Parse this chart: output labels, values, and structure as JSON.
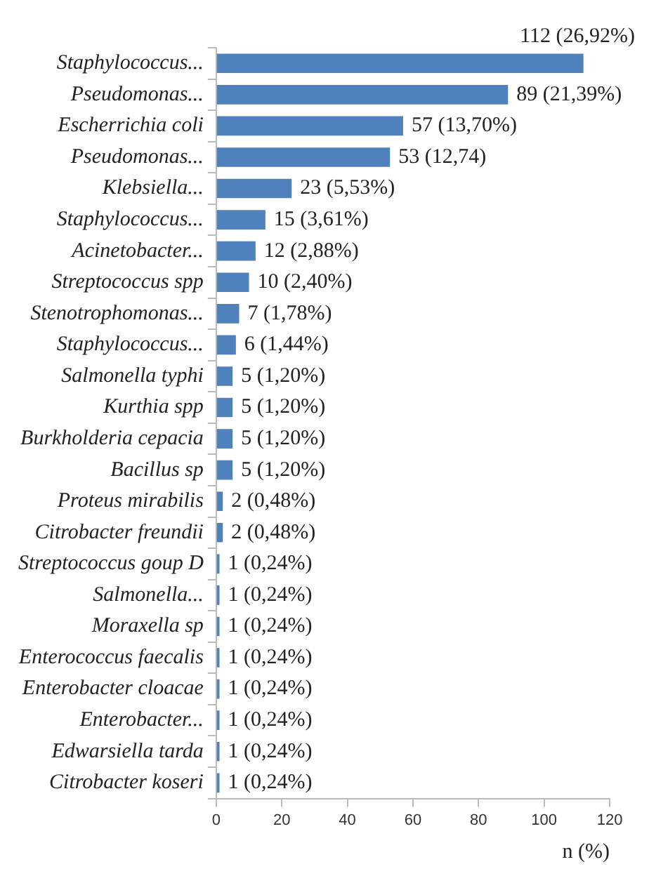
{
  "chart_data": {
    "type": "bar",
    "orientation": "horizontal",
    "xlabel": "n (%)",
    "categories": [
      "Staphylococcus...",
      "Pseudomonas...",
      "Escherrichia coli",
      "Pseudomonas...",
      "Klebsiella...",
      "Staphylococcus...",
      "Acinetobacter...",
      "Streptococcus spp",
      "Stenotrophomonas...",
      "Staphylococcus...",
      "Salmonella typhi",
      "Kurthia spp",
      "Burkholderia cepacia",
      "Bacillus sp",
      "Proteus mirabilis",
      "Citrobacter freundii",
      "Streptococcus goup D",
      "Salmonella...",
      "Moraxella sp",
      "Enterococcus faecalis",
      "Enterobacter cloacae",
      "Enterobacter...",
      "Edwarsiella tarda",
      "Citrobacter koseri"
    ],
    "values": [
      112,
      89,
      57,
      53,
      23,
      15,
      12,
      10,
      7,
      6,
      5,
      5,
      5,
      5,
      2,
      2,
      1,
      1,
      1,
      1,
      1,
      1,
      1,
      1
    ],
    "value_labels": [
      "112 (26,92%)",
      "89 (21,39%)",
      "57 (13,70%)",
      "53 (12,74)",
      "23 (5,53%)",
      "15 (3,61%)",
      "12 (2,88%)",
      "10 (2,40%)",
      "7 (1,78%)",
      "6 (1,44%)",
      "5 (1,20%)",
      "5 (1,20%)",
      "5 (1,20%)",
      "5 (1,20%)",
      "2 (0,48%)",
      "2 (0,48%)",
      "1 (0,24%)",
      "1 (0,24%)",
      "1 (0,24%)",
      "1 (0,24%)",
      "1 (0,24%)",
      "1 (0,24%)",
      "1 (0,24%)",
      "1 (0,24%)"
    ],
    "color": "#4f81bd",
    "xlim": [
      0,
      120
    ],
    "xticks": [
      0,
      20,
      40,
      60,
      80,
      100,
      120
    ],
    "grid": false,
    "legend": false
  }
}
